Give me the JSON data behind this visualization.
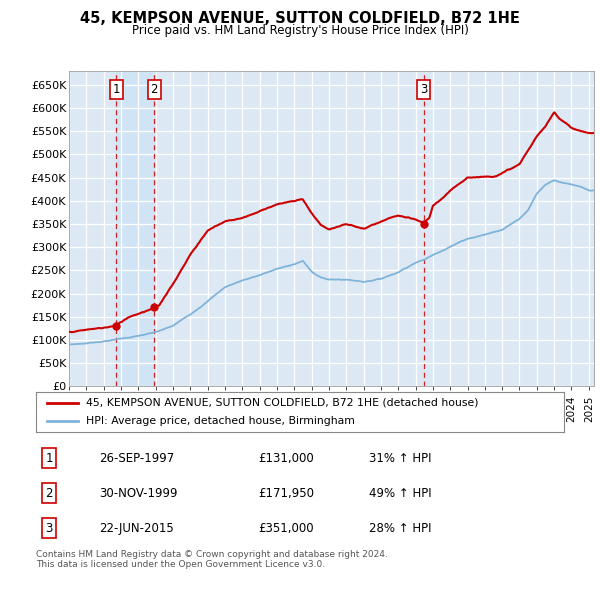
{
  "title": "45, KEMPSON AVENUE, SUTTON COLDFIELD, B72 1HE",
  "subtitle": "Price paid vs. HM Land Registry's House Price Index (HPI)",
  "yticks": [
    0,
    50000,
    100000,
    150000,
    200000,
    250000,
    300000,
    350000,
    400000,
    450000,
    500000,
    550000,
    600000,
    650000
  ],
  "xlim_start": 1995.0,
  "xlim_end": 2025.3,
  "ylim": [
    0,
    680000
  ],
  "plot_bg_color": "#dce9f5",
  "grid_color": "#ffffff",
  "purchases": [
    {
      "label": "1",
      "date_num": 1997.74,
      "price": 131000
    },
    {
      "label": "2",
      "date_num": 1999.92,
      "price": 171950
    },
    {
      "label": "3",
      "date_num": 2015.48,
      "price": 351000
    }
  ],
  "legend_line1": "45, KEMPSON AVENUE, SUTTON COLDFIELD, B72 1HE (detached house)",
  "legend_line2": "HPI: Average price, detached house, Birmingham",
  "table_rows": [
    {
      "num": "1",
      "date": "26-SEP-1997",
      "price": "£131,000",
      "pct": "31% ↑ HPI"
    },
    {
      "num": "2",
      "date": "30-NOV-1999",
      "price": "£171,950",
      "pct": "49% ↑ HPI"
    },
    {
      "num": "3",
      "date": "22-JUN-2015",
      "price": "£351,000",
      "pct": "28% ↑ HPI"
    }
  ],
  "footer": "Contains HM Land Registry data © Crown copyright and database right 2024.\nThis data is licensed under the Open Government Licence v3.0.",
  "red_color": "#cc0000",
  "blue_color": "#7fb3d9",
  "shade_color": "#d0e4f5"
}
